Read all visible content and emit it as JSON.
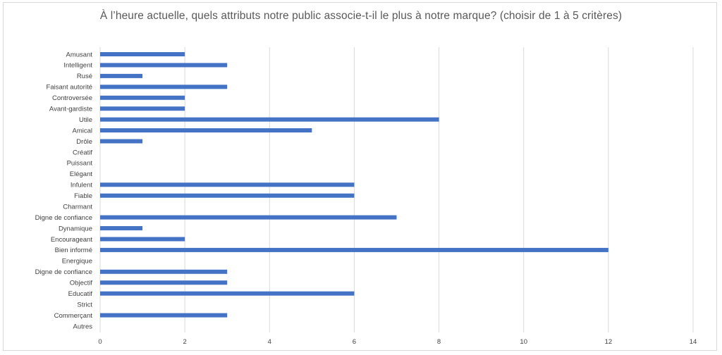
{
  "chart_data": {
    "type": "bar",
    "orientation": "horizontal",
    "title": "À l’heure actuelle, quels attributs notre public associe-t-il le plus à notre marque? (choisir de 1 à 5 critères)",
    "xlabel": "",
    "ylabel": "",
    "xlim": [
      0,
      14
    ],
    "x_ticks": [
      0,
      2,
      4,
      6,
      8,
      10,
      12,
      14
    ],
    "x_tick_labels": [
      "0",
      "2",
      "4",
      "6",
      "8",
      "10",
      "12",
      "14"
    ],
    "grid": "vertical",
    "legend": "none",
    "bar_color": "#4472C4",
    "categories": [
      "Amusant",
      "Intelligent",
      "Rusé",
      "Faisant autorité",
      "Controversée",
      "Avant-gardiste",
      "Utile",
      "Amical",
      "Drôle",
      "Créatif",
      "Puissant",
      "Elégant",
      "Infulent",
      "Fiable",
      "Charmant",
      "Digne de confiance",
      "Dynamique",
      "Encourageant",
      "Bien informé",
      "Energique",
      "Digne de confiance",
      "Objectif",
      "Educatif",
      "Strict",
      "Commerçant",
      "Autres"
    ],
    "values": [
      2,
      3,
      1,
      3,
      2,
      2,
      8,
      5,
      1,
      0,
      0,
      0,
      6,
      6,
      0,
      7,
      1,
      2,
      12,
      0,
      3,
      3,
      6,
      0,
      3,
      0
    ]
  }
}
